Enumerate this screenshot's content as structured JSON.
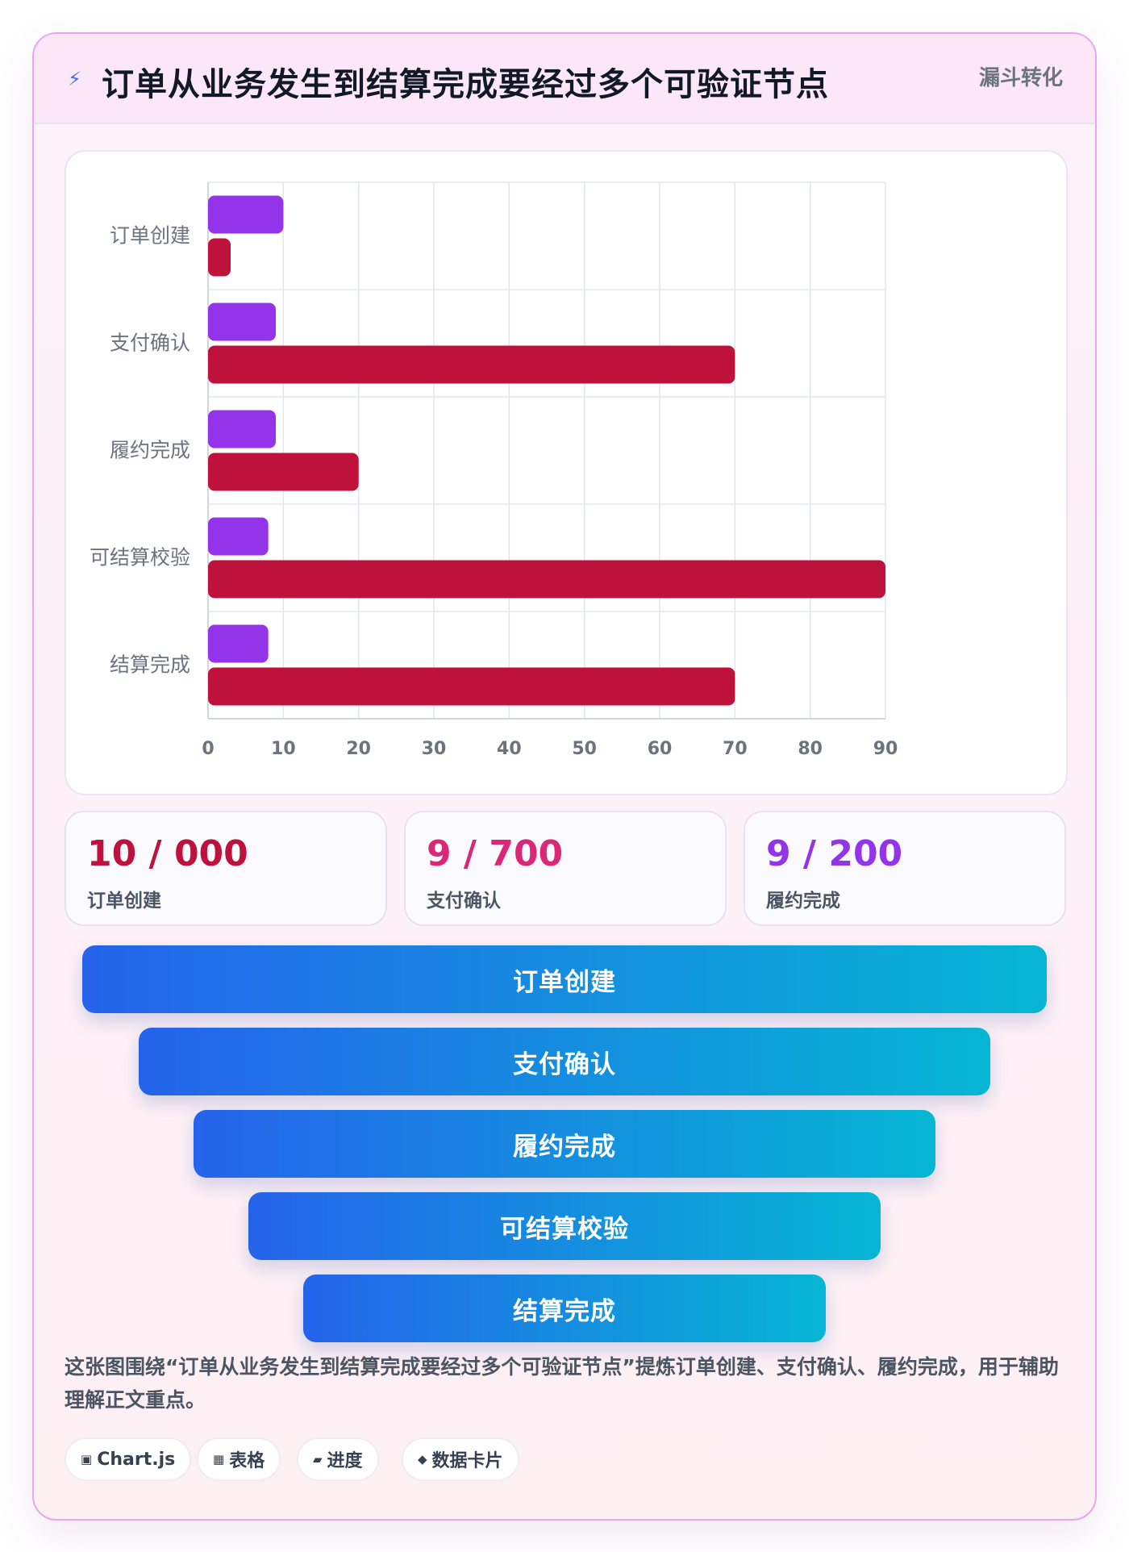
{
  "header": {
    "title": "订单从业务发生到结算完成要经过多个可验证节点",
    "tag": "漏斗转化",
    "icon": "lightning-icon"
  },
  "chart_data": {
    "type": "bar",
    "orientation": "horizontal",
    "categories": [
      "订单创建",
      "支付确认",
      "履约完成",
      "可结算校验",
      "结算完成"
    ],
    "series": [
      {
        "color": "#9333ea",
        "values": [
          10,
          9,
          9,
          8,
          8
        ]
      },
      {
        "color": "#be123c",
        "values": [
          3,
          70,
          20,
          90,
          70
        ]
      }
    ],
    "xlim": [
      0,
      90
    ],
    "xticks": [
      0,
      10,
      20,
      30,
      40,
      50,
      60,
      70,
      80,
      90
    ],
    "grid": true,
    "legend": "none"
  },
  "stats": [
    {
      "value": "10 / 000",
      "label": "订单创建",
      "color": "#be123c"
    },
    {
      "value": "9 / 700",
      "label": "支付确认",
      "color": "#db2777"
    },
    {
      "value": "9 / 200",
      "label": "履约完成",
      "color": "#9333ea"
    }
  ],
  "funnel": [
    "订单创建",
    "支付确认",
    "履约完成",
    "可结算校验",
    "结算完成"
  ],
  "description": "这张图围绕“订单从业务发生到结算完成要经过多个可验证节点”提炼订单创建、支付确认、履约完成，用于辅助理解正文重点。",
  "chips": [
    {
      "icon": "▣",
      "label": "Chart.js"
    },
    {
      "icon": "▦",
      "label": "表格"
    },
    {
      "icon": "▰",
      "label": "进度"
    },
    {
      "icon": "◆",
      "label": "数据卡片"
    }
  ]
}
